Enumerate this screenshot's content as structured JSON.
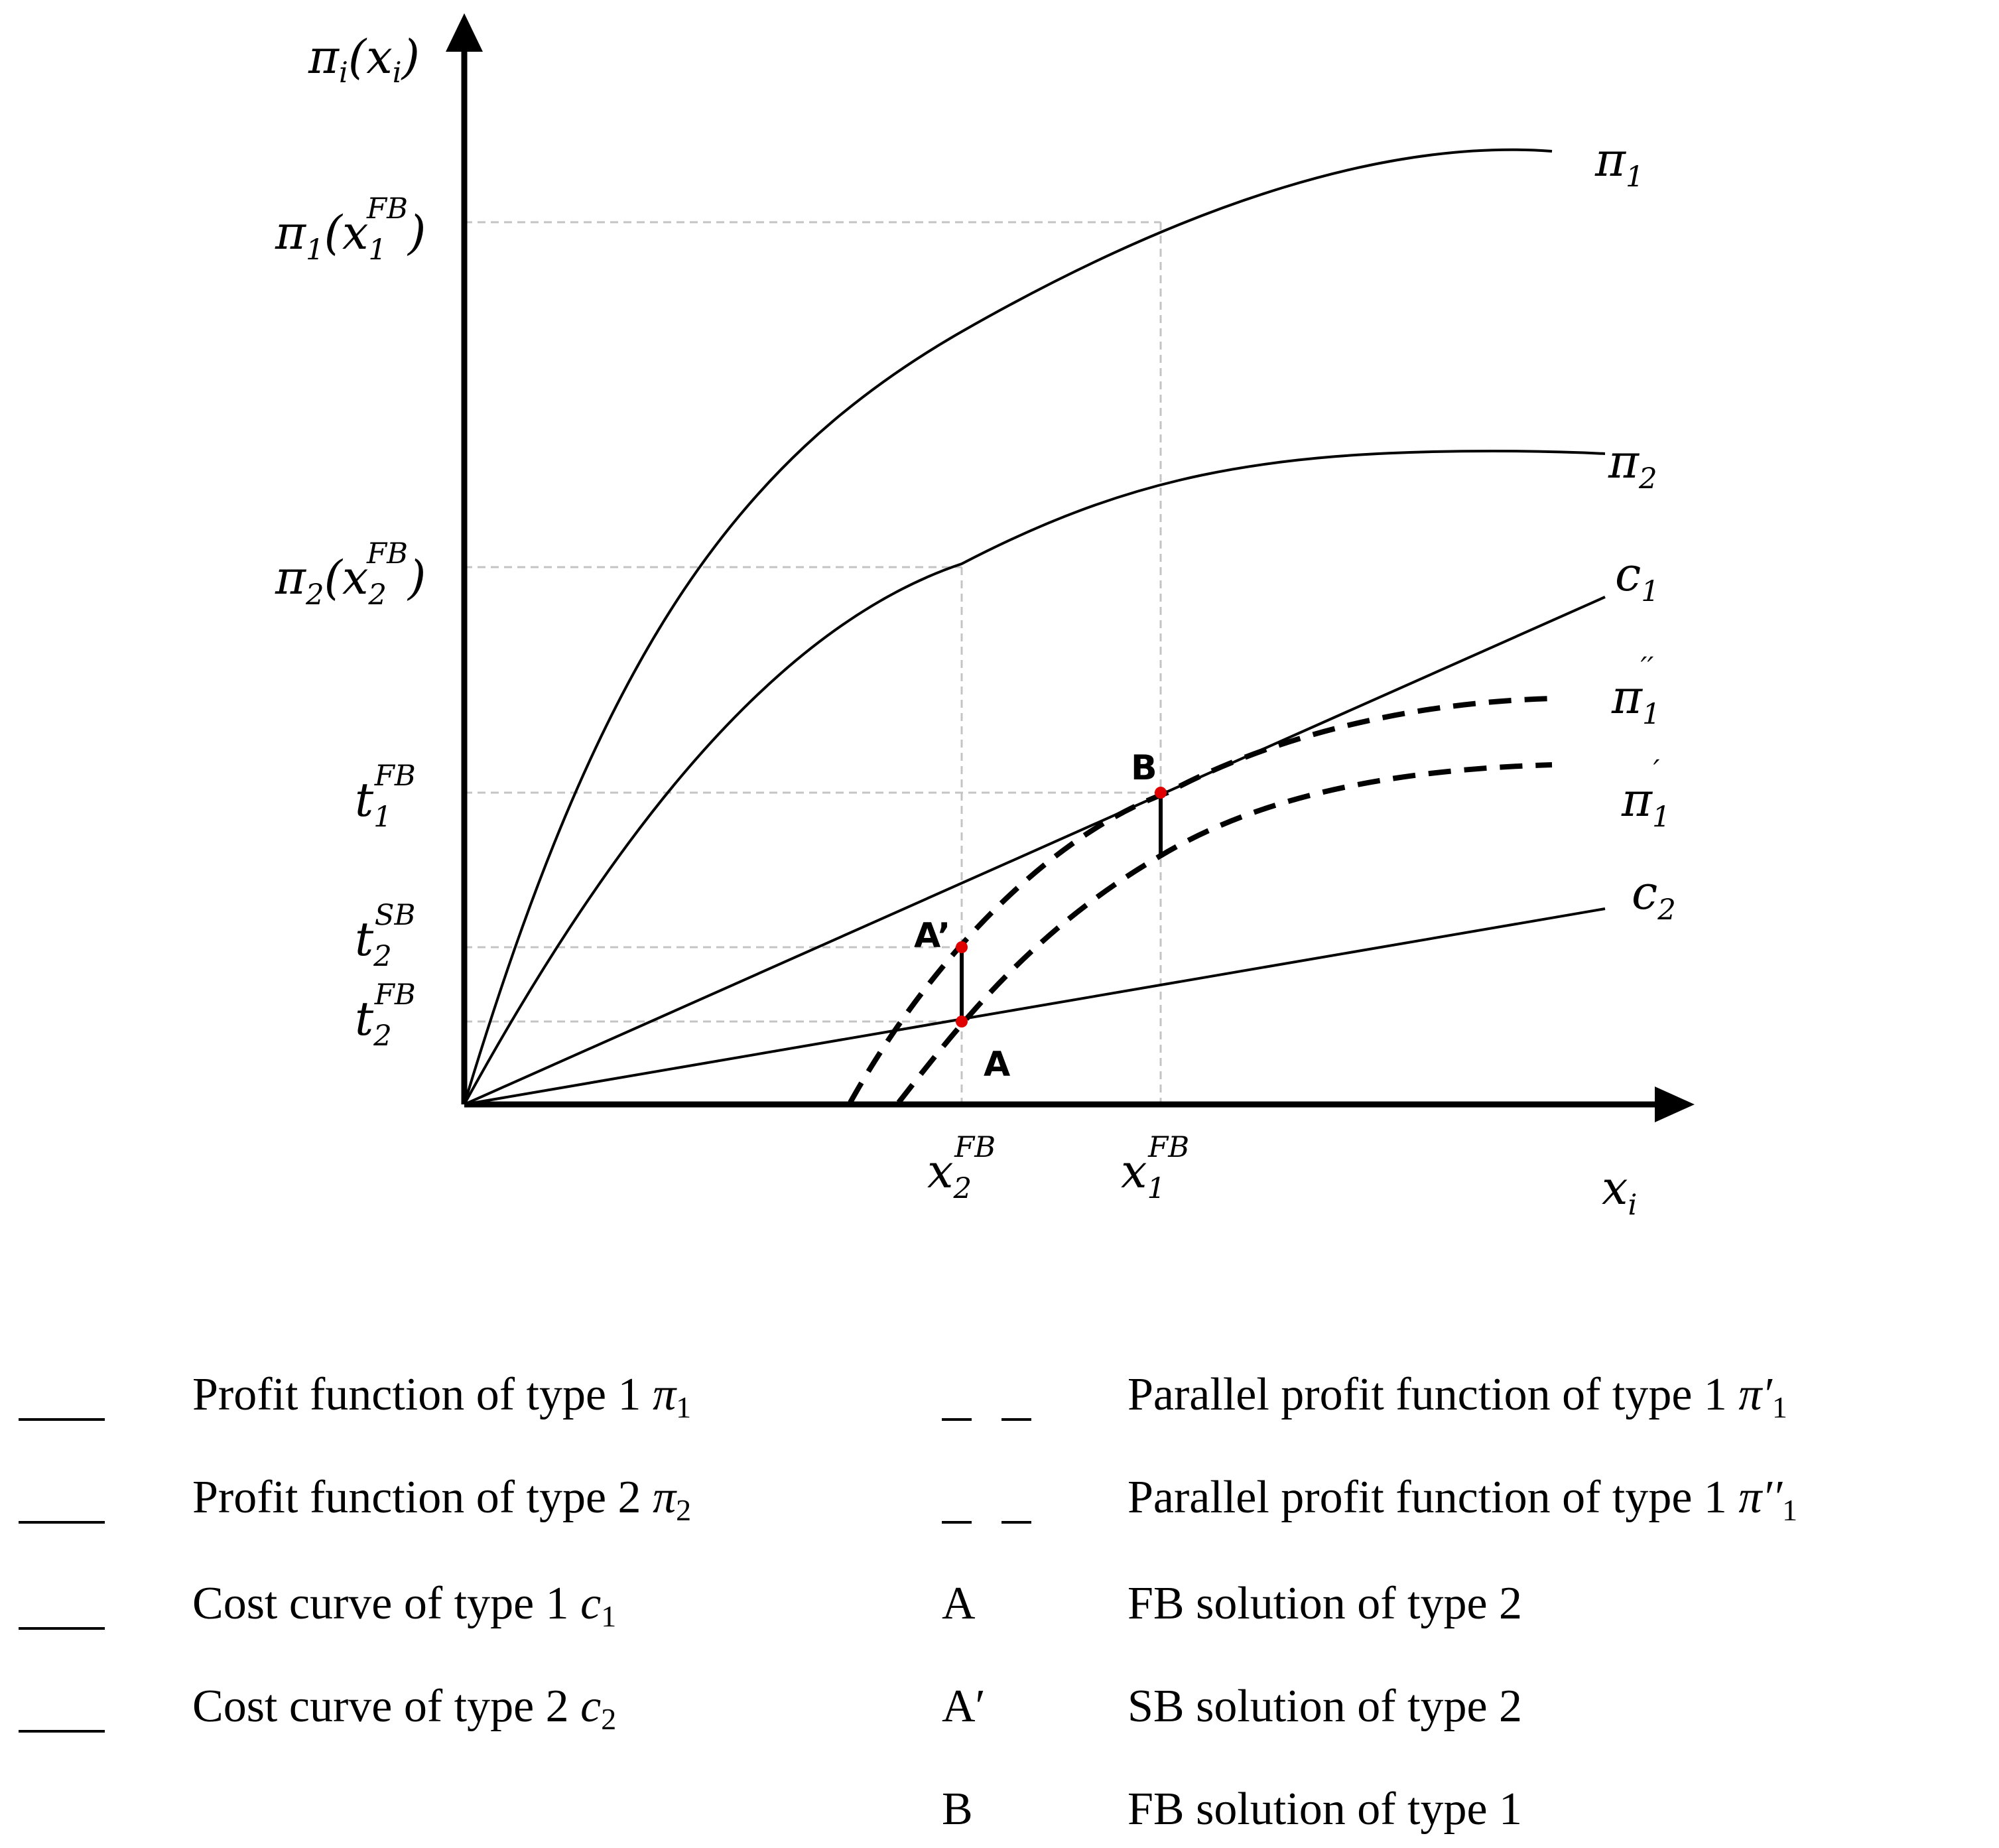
{
  "axes": {
    "y_label": {
      "base": "π",
      "sub": "i",
      "paren": "(x",
      "sub2": "i",
      "close": ")"
    },
    "x_label": {
      "base": "x",
      "sub": "i"
    }
  },
  "y_ticks": [
    {
      "id": "pi1",
      "base": "π",
      "sub": "1",
      "open": "(",
      "var": "x",
      "var_sub": "1",
      "sup": "FB",
      "close": ")"
    },
    {
      "id": "pi2",
      "base": "π",
      "sub": "2",
      "open": "(",
      "var": "x",
      "var_sub": "2",
      "sup": "FB",
      "close": ")"
    },
    {
      "id": "t1fb",
      "base": "t",
      "sub": "1",
      "sup": "FB"
    },
    {
      "id": "t2sb",
      "base": "t",
      "sub": "2",
      "sup": "SB"
    },
    {
      "id": "t2fb",
      "base": "t",
      "sub": "2",
      "sup": "FB"
    }
  ],
  "x_ticks": [
    {
      "id": "x2fb",
      "base": "x",
      "sub": "2",
      "sup": "FB"
    },
    {
      "id": "x1fb",
      "base": "x",
      "sub": "1",
      "sup": "FB"
    }
  ],
  "curve_labels": [
    {
      "id": "pi1",
      "base": "π",
      "sub": "1",
      "sup": ""
    },
    {
      "id": "pi2",
      "base": "π",
      "sub": "2",
      "sup": ""
    },
    {
      "id": "c1",
      "base": "c",
      "sub": "1",
      "sup": ""
    },
    {
      "id": "pi1pp",
      "base": "π",
      "sub": "1",
      "sup": "′′"
    },
    {
      "id": "pi1p",
      "base": "π",
      "sub": "1",
      "sup": "′"
    },
    {
      "id": "c2",
      "base": "c",
      "sub": "2",
      "sup": ""
    }
  ],
  "points": [
    {
      "id": "A",
      "label": "A"
    },
    {
      "id": "Aprime",
      "label": "A’"
    },
    {
      "id": "B",
      "label": "B"
    }
  ],
  "legend": {
    "left": [
      {
        "symbol": "___",
        "text": "Profit function of type 1 ",
        "math": "π",
        "sub": "1"
      },
      {
        "symbol": "___",
        "text": "Profit function of type 2 ",
        "math": "π",
        "sub": "2"
      },
      {
        "symbol": "___",
        "text": "Cost curve of type 1 ",
        "math": "c",
        "sub": "1"
      },
      {
        "symbol": "___",
        "text": "Cost curve of type 2 ",
        "math": "c",
        "sub": "2"
      }
    ],
    "right": [
      {
        "symbol": "_ _",
        "text": "Parallel profit function of type 1 ",
        "math": "π′",
        "sub": "1"
      },
      {
        "symbol": "_ _",
        "text": "Parallel profit function of type 1 ",
        "math": "π′′",
        "sub": "1"
      },
      {
        "symbol": "A",
        "text": "FB solution of type 2",
        "math": "",
        "sub": ""
      },
      {
        "symbol": "A′",
        "text": "SB solution of type 2",
        "math": "",
        "sub": ""
      },
      {
        "symbol": "B",
        "text": "FB solution of type 1",
        "math": "",
        "sub": ""
      }
    ]
  },
  "colors": {
    "axis": "#000000",
    "guide": "#bfbfbf",
    "point": "#e00000"
  }
}
